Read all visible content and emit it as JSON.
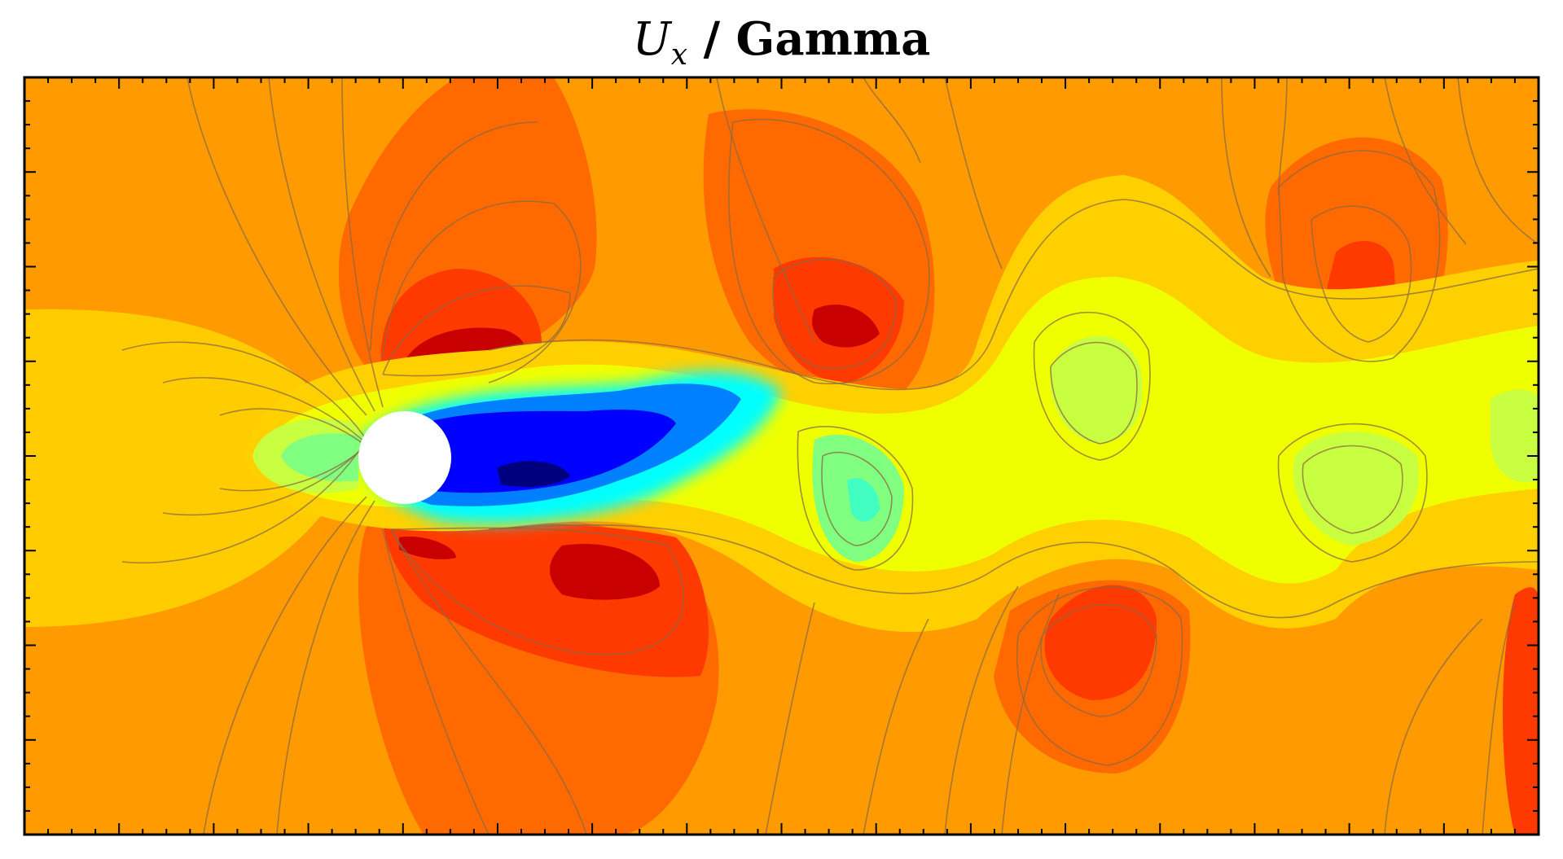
{
  "chart_data": {
    "type": "heatmap",
    "title": {
      "variable": "U",
      "subscript": "x",
      "suffix": " / Gamma"
    },
    "xlabel": "",
    "ylabel": "",
    "grid": false,
    "legend": "none",
    "colormap": [
      "#00007f",
      "#0000ff",
      "#0080ff",
      "#00ffff",
      "#80ff80",
      "#c8ff40",
      "#f0ff00",
      "#ffd000",
      "#ff9a00",
      "#ff6a00",
      "#ff3a00",
      "#c80000",
      "#7f0000"
    ],
    "colors": {
      "background": "#ff9a00",
      "contour_line": "#8a6a40",
      "obstacle": "#ffffff",
      "frame": "#000000"
    },
    "x_ticks": 64,
    "y_ticks": 32
  }
}
